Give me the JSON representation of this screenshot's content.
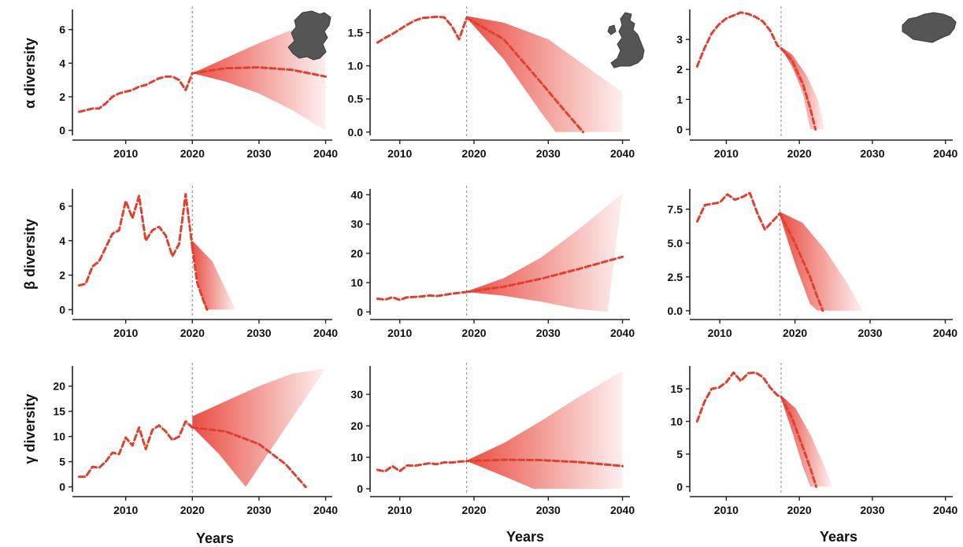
{
  "figure": {
    "row_labels": [
      "α diversity",
      "β diversity",
      "γ diversity"
    ],
    "x_axis_title": "Years"
  },
  "colors": {
    "series": "#e0402f",
    "band": "#e8453a",
    "reference_line": "#9a9a9a",
    "map": "#555555"
  },
  "chart_data": [
    {
      "type": "line",
      "row": 1,
      "col": 1,
      "metric": "α diversity",
      "map_icon": "netherlands-map-icon",
      "xlim": [
        2002,
        2041
      ],
      "ylim": [
        -0.3,
        7.2
      ],
      "xticks": [
        2010,
        2020,
        2030,
        2040
      ],
      "yticks": [
        0,
        2,
        4,
        6
      ],
      "forecast_start": 2020,
      "observed": {
        "x": [
          2003,
          2004,
          2005,
          2006,
          2007,
          2008,
          2009,
          2010,
          2011,
          2012,
          2013,
          2014,
          2015,
          2016,
          2017,
          2018,
          2019,
          2020
        ],
        "y": [
          1.1,
          1.2,
          1.3,
          1.3,
          1.6,
          2.0,
          2.2,
          2.3,
          2.4,
          2.6,
          2.7,
          2.9,
          3.1,
          3.2,
          3.2,
          3.0,
          2.4,
          3.4
        ]
      },
      "forecast": {
        "x": [
          2020,
          2025,
          2030,
          2035,
          2040
        ],
        "y": [
          3.4,
          3.7,
          3.75,
          3.6,
          3.2
        ]
      },
      "interval_lower": [
        3.4,
        2.9,
        2.2,
        1.2,
        0.0
      ],
      "interval_upper": [
        3.4,
        4.3,
        5.2,
        6.0,
        6.8
      ]
    },
    {
      "type": "line",
      "row": 1,
      "col": 2,
      "metric": "α diversity",
      "map_icon": "united-kingdom-map-icon",
      "xlim": [
        2006,
        2041
      ],
      "ylim": [
        -0.05,
        1.85
      ],
      "xticks": [
        2010,
        2020,
        2030,
        2040
      ],
      "yticks": [
        0.0,
        0.5,
        1.0,
        1.5
      ],
      "forecast_start": 2019,
      "observed": {
        "x": [
          2007,
          2008,
          2009,
          2010,
          2011,
          2012,
          2013,
          2014,
          2015,
          2016,
          2017,
          2018,
          2019
        ],
        "y": [
          1.35,
          1.42,
          1.48,
          1.55,
          1.62,
          1.68,
          1.72,
          1.73,
          1.74,
          1.73,
          1.6,
          1.4,
          1.72
        ]
      },
      "forecast": {
        "x": [
          2019,
          2024,
          2029,
          2032,
          2034.7
        ],
        "y": [
          1.72,
          1.4,
          0.75,
          0.35,
          0.0
        ]
      },
      "interval_lower": [
        1.72,
        1.1,
        0.3,
        0.0,
        0.0
      ],
      "interval_upper": [
        1.75,
        1.65,
        1.4,
        1.0,
        0.6
      ],
      "interval_x": [
        2019,
        2024,
        2029,
        2031,
        2040
      ],
      "interval_upper_x": [
        2019,
        2024,
        2030,
        2035,
        2040
      ]
    },
    {
      "type": "line",
      "row": 1,
      "col": 3,
      "metric": "α diversity",
      "map_icon": "hungary-map-icon",
      "xlim": [
        2005,
        2041
      ],
      "ylim": [
        -0.2,
        4.0
      ],
      "xticks": [
        2010,
        2020,
        2030,
        2040
      ],
      "yticks": [
        0,
        1,
        2,
        3
      ],
      "forecast_start": 2017.5,
      "observed": {
        "x": [
          2006,
          2007,
          2008,
          2009,
          2010,
          2011,
          2012,
          2013,
          2014,
          2015,
          2016,
          2017,
          2017.5
        ],
        "y": [
          2.1,
          2.7,
          3.2,
          3.5,
          3.7,
          3.8,
          3.9,
          3.85,
          3.75,
          3.6,
          3.3,
          2.8,
          2.7
        ]
      },
      "forecast": {
        "x": [
          2017.5,
          2019,
          2020.5,
          2021.5,
          2022.2
        ],
        "y": [
          2.7,
          2.3,
          1.5,
          0.7,
          0.0
        ]
      },
      "interval_lower": [
        2.7,
        2.1,
        1.2,
        0.0,
        0.0
      ],
      "interval_upper": [
        2.75,
        2.5,
        1.8,
        1.0,
        0.0
      ],
      "interval_x": [
        2017.5,
        2019,
        2020.5,
        2021.5,
        2022
      ],
      "interval_upper_x": [
        2017.5,
        2019,
        2021,
        2022.5,
        2023.5
      ]
    },
    {
      "type": "line",
      "row": 2,
      "col": 1,
      "metric": "β diversity",
      "xlim": [
        2002,
        2041
      ],
      "ylim": [
        -0.3,
        7.0
      ],
      "xticks": [
        2010,
        2020,
        2030,
        2040
      ],
      "yticks": [
        0,
        2,
        4,
        6
      ],
      "forecast_start": 2020,
      "observed": {
        "x": [
          2003,
          2004,
          2005,
          2006,
          2007,
          2008,
          2009,
          2010,
          2011,
          2012,
          2013,
          2014,
          2015,
          2016,
          2017,
          2018,
          2019,
          2020
        ],
        "y": [
          1.4,
          1.5,
          2.5,
          2.8,
          3.6,
          4.4,
          4.6,
          6.3,
          5.3,
          6.6,
          4.0,
          4.6,
          4.8,
          4.3,
          3.1,
          3.8,
          6.7,
          3.6
        ]
      },
      "forecast": {
        "x": [
          2020,
          2020.7,
          2021.5,
          2022.2
        ],
        "y": [
          3.6,
          1.6,
          0.7,
          0.0
        ]
      },
      "interval_lower": [
        3.6,
        1.2,
        0.0,
        0.0
      ],
      "interval_upper": [
        4.0,
        2.8,
        1.2,
        0.0
      ],
      "interval_x": [
        2020,
        2021,
        2022,
        2023
      ],
      "interval_upper_x": [
        2020,
        2023,
        2025,
        2026.5
      ]
    },
    {
      "type": "line",
      "row": 2,
      "col": 2,
      "metric": "β diversity",
      "xlim": [
        2006,
        2041
      ],
      "ylim": [
        -1,
        42
      ],
      "xticks": [
        2010,
        2020,
        2030,
        2040
      ],
      "yticks": [
        0,
        10,
        20,
        30,
        40
      ],
      "forecast_start": 2019,
      "observed": {
        "x": [
          2007,
          2008,
          2009,
          2010,
          2011,
          2012,
          2013,
          2014,
          2015,
          2016,
          2017,
          2018,
          2019
        ],
        "y": [
          4.5,
          4.2,
          5.0,
          4.1,
          5.0,
          5.1,
          5.3,
          5.6,
          5.4,
          5.8,
          6.2,
          6.5,
          6.8
        ]
      },
      "forecast": {
        "x": [
          2019,
          2024,
          2029,
          2034,
          2040
        ],
        "y": [
          6.8,
          8.6,
          11.3,
          14.6,
          18.8
        ]
      },
      "interval_lower": [
        6.8,
        5.5,
        3.5,
        1.0,
        0.0
      ],
      "interval_upper": [
        7.0,
        11.5,
        18.5,
        28.0,
        40.5
      ],
      "interval_x": [
        2019,
        2024,
        2029,
        2034,
        2038
      ],
      "interval_upper_x": [
        2019,
        2024,
        2029,
        2034,
        2040
      ]
    },
    {
      "type": "line",
      "row": 2,
      "col": 3,
      "metric": "β diversity",
      "xlim": [
        2006,
        2041
      ],
      "ylim": [
        -0.3,
        9.0
      ],
      "xticks": [
        2010,
        2020,
        2030,
        2040
      ],
      "yticks": [
        0.0,
        2.5,
        5.0,
        7.5
      ],
      "forecast_start": 2018,
      "observed": {
        "x": [
          2007,
          2008,
          2009,
          2010,
          2011,
          2012,
          2013,
          2014,
          2015,
          2016,
          2017,
          2018
        ],
        "y": [
          6.6,
          7.8,
          7.9,
          8.0,
          8.6,
          8.2,
          8.4,
          8.7,
          7.2,
          6.0,
          6.6,
          7.2
        ]
      },
      "forecast": {
        "x": [
          2018,
          2020,
          2022,
          2023,
          2023.7
        ],
        "y": [
          7.2,
          5.0,
          2.5,
          1.0,
          0.0
        ]
      },
      "interval_lower": [
        7.0,
        3.5,
        0.5,
        0.0,
        0.0
      ],
      "interval_upper": [
        7.3,
        6.5,
        4.5,
        2.0,
        0.0
      ],
      "interval_x": [
        2018,
        2020,
        2022,
        2023,
        2022
      ],
      "interval_upper_x": [
        2018,
        2021,
        2024,
        2027,
        2029
      ]
    },
    {
      "type": "line",
      "row": 3,
      "col": 1,
      "metric": "γ diversity",
      "xlim": [
        2002,
        2041
      ],
      "ylim": [
        -1,
        24
      ],
      "xticks": [
        2010,
        2020,
        2030,
        2040
      ],
      "yticks": [
        0,
        5,
        10,
        15,
        20
      ],
      "forecast_start": 2020,
      "observed": {
        "x": [
          2003,
          2004,
          2005,
          2006,
          2007,
          2008,
          2009,
          2010,
          2011,
          2012,
          2013,
          2014,
          2015,
          2016,
          2017,
          2018,
          2019,
          2020
        ],
        "y": [
          2.0,
          2.0,
          4.0,
          3.8,
          5.0,
          6.8,
          6.5,
          9.8,
          8.2,
          11.8,
          7.5,
          11.3,
          12.2,
          11.0,
          9.3,
          10.0,
          13.0,
          11.8
        ]
      },
      "forecast": {
        "x": [
          2020,
          2025,
          2030,
          2034,
          2037
        ],
        "y": [
          11.8,
          11.0,
          8.5,
          4.5,
          0.0
        ]
      },
      "interval_lower": [
        11.8,
        6.5,
        0.0,
        0.0,
        0.0
      ],
      "interval_upper": [
        14.0,
        17.0,
        20.0,
        22.5,
        23.5
      ],
      "interval_x": [
        2020,
        2024,
        2028,
        2028,
        2028
      ],
      "interval_upper_x": [
        2020,
        2025,
        2030,
        2035,
        2040
      ]
    },
    {
      "type": "line",
      "row": 3,
      "col": 2,
      "metric": "γ diversity",
      "xlim": [
        2006,
        2041
      ],
      "ylim": [
        -1,
        39
      ],
      "xticks": [
        2010,
        2020,
        2030,
        2040
      ],
      "yticks": [
        0,
        10,
        20,
        30
      ],
      "forecast_start": 2019,
      "observed": {
        "x": [
          2007,
          2008,
          2009,
          2010,
          2011,
          2012,
          2013,
          2014,
          2015,
          2016,
          2017,
          2018,
          2019
        ],
        "y": [
          6.0,
          5.5,
          7.2,
          5.6,
          7.4,
          7.3,
          7.7,
          8.1,
          7.8,
          8.4,
          8.3,
          8.6,
          8.8
        ]
      },
      "forecast": {
        "x": [
          2019,
          2024,
          2029,
          2034,
          2040
        ],
        "y": [
          8.8,
          9.2,
          9.1,
          8.5,
          7.2
        ]
      },
      "interval_lower": [
        8.8,
        4.0,
        0.0,
        0.0,
        0.0
      ],
      "interval_upper": [
        9.0,
        14.5,
        21.5,
        29.0,
        37.5
      ],
      "interval_x": [
        2019,
        2024,
        2028,
        2032,
        2040
      ],
      "interval_upper_x": [
        2019,
        2024,
        2029,
        2034,
        2040
      ]
    },
    {
      "type": "line",
      "row": 3,
      "col": 3,
      "metric": "γ diversity",
      "xlim": [
        2005,
        2041
      ],
      "ylim": [
        -0.8,
        18.5
      ],
      "xticks": [
        2010,
        2020,
        2030,
        2040
      ],
      "yticks": [
        0,
        5,
        10,
        15
      ],
      "forecast_start": 2017.5,
      "observed": {
        "x": [
          2006,
          2007,
          2008,
          2009,
          2010,
          2011,
          2012,
          2013,
          2014,
          2015,
          2016,
          2017,
          2017.5
        ],
        "y": [
          10.0,
          13.0,
          15.0,
          15.2,
          16.0,
          17.5,
          16.2,
          17.4,
          17.5,
          16.8,
          15.2,
          14.0,
          13.8
        ]
      },
      "forecast": {
        "x": [
          2017.5,
          2019,
          2020.5,
          2021.6,
          2022.3
        ],
        "y": [
          13.8,
          10.5,
          6.0,
          2.5,
          0.0
        ]
      },
      "interval_lower": [
        13.5,
        8.5,
        3.0,
        0.0,
        0.0
      ],
      "interval_upper": [
        14.0,
        12.0,
        8.0,
        3.0,
        0.0
      ],
      "interval_x": [
        2017.5,
        2019,
        2020.5,
        2021.5,
        2022
      ],
      "interval_upper_x": [
        2017.5,
        2019.5,
        2021.5,
        2023.5,
        2024.5
      ]
    }
  ]
}
